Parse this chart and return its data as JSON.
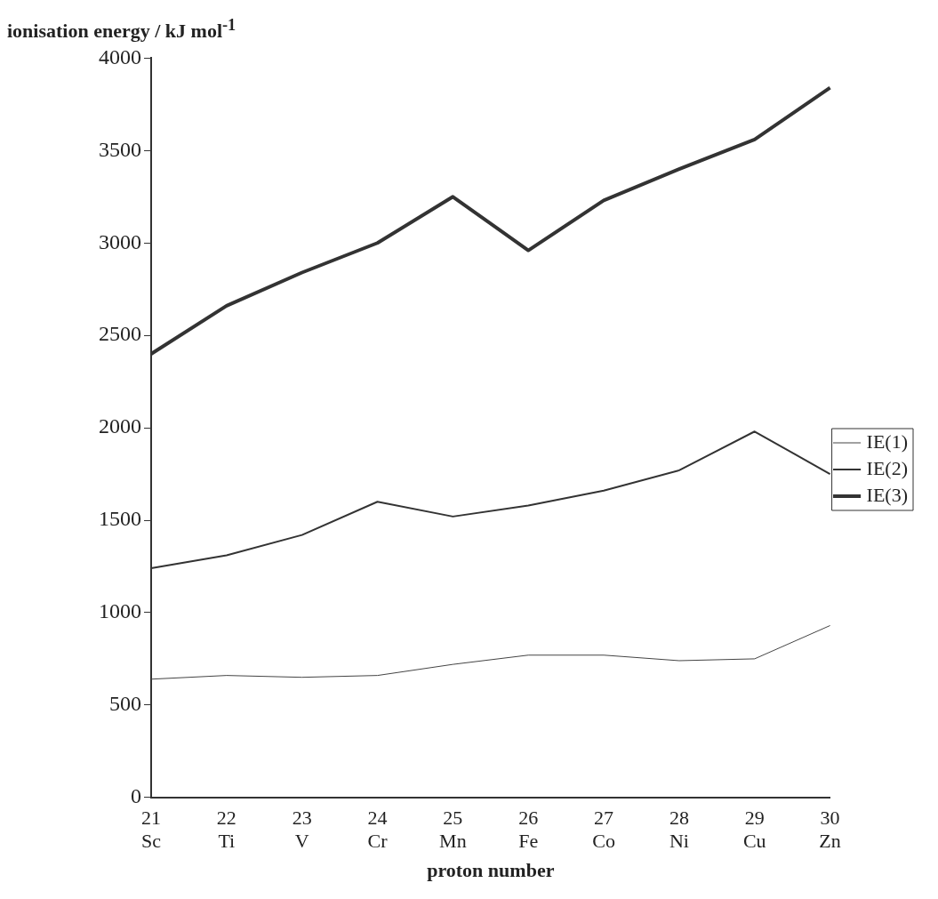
{
  "chart_data": {
    "type": "line",
    "ylabel": "ionisation energy / kJ mol$^{-1}$",
    "xlabel": "proton number",
    "categories": [
      "21\nSc",
      "22\nTi",
      "23\nV",
      "24\nCr",
      "25\nMn",
      "26\nFe",
      "27\nCo",
      "28\nNi",
      "29\nCu",
      "30\nZn"
    ],
    "series": [
      {
        "name": "IE(1)",
        "color": "#444444",
        "values": [
          640,
          660,
          650,
          660,
          720,
          770,
          770,
          740,
          750,
          930
        ]
      },
      {
        "name": "IE(2)",
        "color": "#333333",
        "values": [
          1240,
          1310,
          1420,
          1600,
          1520,
          1580,
          1660,
          1770,
          1980,
          1750
        ]
      },
      {
        "name": "IE(3)",
        "color": "#333333",
        "values": [
          2400,
          2660,
          2840,
          3000,
          3250,
          2960,
          3230,
          3400,
          3560,
          3840
        ]
      }
    ],
    "ylim": [
      0,
      4000
    ],
    "yticks": [
      0,
      500,
      1000,
      1500,
      2000,
      2500,
      3000,
      3500,
      4000
    ],
    "grid": false,
    "legend": "right",
    "marker": "none",
    "line_style": "solid"
  }
}
